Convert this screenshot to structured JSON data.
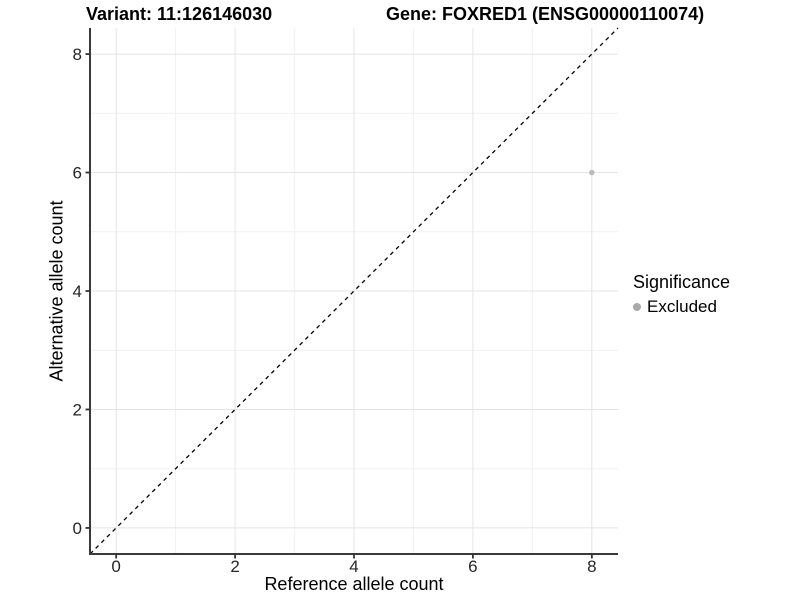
{
  "header": {
    "variant_title": "Variant: 11:126146030",
    "gene_title": "Gene: FOXRED1 (ENSG00000110074)"
  },
  "chart_data": {
    "type": "scatter",
    "title": "",
    "xlabel": "Reference allele count",
    "ylabel": "Alternative allele count",
    "xlim": [
      -0.44,
      8.44
    ],
    "ylim": [
      -0.44,
      8.44
    ],
    "xticks": [
      0,
      2,
      4,
      6,
      8
    ],
    "yticks": [
      0,
      2,
      4,
      6,
      8
    ],
    "minor_ticks": [
      1,
      3,
      5,
      7
    ],
    "grid": "major and minor gridlines on, white background",
    "legend_position": "right",
    "reference_line": {
      "type": "identity y=x",
      "style": "dashed",
      "color": "#000000"
    },
    "series": [
      {
        "name": "Excluded",
        "color": "#b9b9b9",
        "points": [
          {
            "x": 8,
            "y": 6
          }
        ]
      }
    ]
  },
  "legend": {
    "title": "Significance",
    "entries": [
      {
        "label": "Excluded",
        "swatch_color": "#aaaaaa"
      }
    ]
  },
  "colors": {
    "grid_major": "#e4e4e4",
    "grid_minor": "#f1f1f1",
    "axis_line": "#3a3a3a",
    "tick_mark": "#333333",
    "tick_label": "#262626",
    "point": "#b9b9b9",
    "ref_line": "#000000"
  }
}
